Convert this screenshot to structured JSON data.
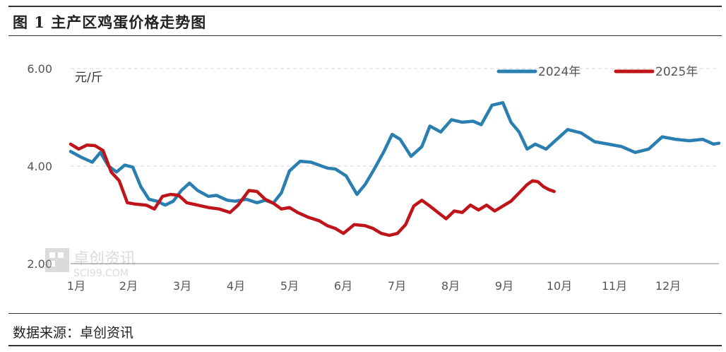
{
  "header": {
    "title": "图 1  主产区鸡蛋价格走势图"
  },
  "footer": {
    "source": "数据来源：卓创资讯"
  },
  "watermark": {
    "text": "卓创资讯",
    "sub": "SCI99.COM"
  },
  "chart_data": {
    "type": "line",
    "title": "图 1  主产区鸡蛋价格走势图",
    "unit_label": "元/斤",
    "ylim": [
      2.0,
      6.0
    ],
    "yticks": [
      "2.00",
      "4.00",
      "6.00"
    ],
    "categories": [
      "1月",
      "2月",
      "3月",
      "4月",
      "5月",
      "6月",
      "7月",
      "8月",
      "9月",
      "10月",
      "11月",
      "12月"
    ],
    "grid": "horizontal dashed",
    "legend_position": "top-right",
    "series": [
      {
        "name": "2024年",
        "color": "#2a7fb0",
        "x": [
          1.0,
          1.2,
          1.4,
          1.55,
          1.7,
          1.85,
          2.0,
          2.15,
          2.3,
          2.45,
          2.6,
          2.75,
          2.9,
          3.05,
          3.2,
          3.35,
          3.55,
          3.7,
          3.9,
          4.05,
          4.25,
          4.45,
          4.6,
          4.75,
          4.9,
          5.05,
          5.25,
          5.45,
          5.6,
          5.75,
          5.9,
          6.1,
          6.3,
          6.45,
          6.6,
          6.8,
          6.95,
          7.1,
          7.3,
          7.5,
          7.65,
          7.85,
          8.05,
          8.25,
          8.45,
          8.6,
          8.8,
          9.0,
          9.15,
          9.3,
          9.45,
          9.6,
          9.8,
          10.0,
          10.2,
          10.45,
          10.7,
          10.95,
          11.2,
          11.45,
          11.7,
          11.95,
          12.2,
          12.45,
          12.7,
          12.9,
          13.0
        ],
        "values": [
          4.3,
          4.18,
          4.08,
          4.28,
          4.0,
          3.88,
          4.02,
          3.98,
          3.58,
          3.32,
          3.28,
          3.2,
          3.28,
          3.5,
          3.65,
          3.5,
          3.38,
          3.4,
          3.3,
          3.28,
          3.32,
          3.25,
          3.3,
          3.24,
          3.45,
          3.9,
          4.1,
          4.08,
          4.02,
          3.96,
          3.94,
          3.8,
          3.42,
          3.62,
          3.9,
          4.3,
          4.65,
          4.55,
          4.2,
          4.4,
          4.82,
          4.7,
          4.95,
          4.9,
          4.92,
          4.85,
          5.25,
          5.3,
          4.9,
          4.7,
          4.35,
          4.45,
          4.35,
          4.55,
          4.75,
          4.68,
          4.5,
          4.45,
          4.4,
          4.28,
          4.35,
          4.6,
          4.55,
          4.52,
          4.55,
          4.45,
          4.47
        ]
      },
      {
        "name": "2025年",
        "color": "#c0141b",
        "x": [
          1.0,
          1.15,
          1.3,
          1.45,
          1.6,
          1.75,
          1.9,
          2.05,
          2.2,
          2.4,
          2.55,
          2.7,
          2.85,
          3.0,
          3.15,
          3.35,
          3.55,
          3.75,
          3.95,
          4.1,
          4.3,
          4.45,
          4.6,
          4.75,
          4.9,
          5.05,
          5.2,
          5.4,
          5.6,
          5.75,
          5.9,
          6.05,
          6.25,
          6.45,
          6.6,
          6.75,
          6.9,
          7.05,
          7.2,
          7.35,
          7.5,
          7.65,
          7.8,
          7.95,
          8.1,
          8.25,
          8.4,
          8.55,
          8.7,
          8.85,
          9.0,
          9.15,
          9.3,
          9.45,
          9.55,
          9.65,
          9.75,
          9.85,
          9.95
        ],
        "values": [
          4.45,
          4.35,
          4.43,
          4.42,
          4.32,
          3.88,
          3.7,
          3.25,
          3.22,
          3.2,
          3.12,
          3.38,
          3.42,
          3.4,
          3.25,
          3.2,
          3.15,
          3.12,
          3.05,
          3.2,
          3.5,
          3.48,
          3.32,
          3.24,
          3.12,
          3.15,
          3.05,
          2.95,
          2.88,
          2.78,
          2.72,
          2.62,
          2.8,
          2.78,
          2.72,
          2.62,
          2.58,
          2.62,
          2.8,
          3.18,
          3.3,
          3.18,
          3.05,
          2.92,
          3.08,
          3.05,
          3.2,
          3.1,
          3.2,
          3.08,
          3.18,
          3.28,
          3.45,
          3.62,
          3.7,
          3.68,
          3.58,
          3.52,
          3.48
        ]
      }
    ]
  }
}
